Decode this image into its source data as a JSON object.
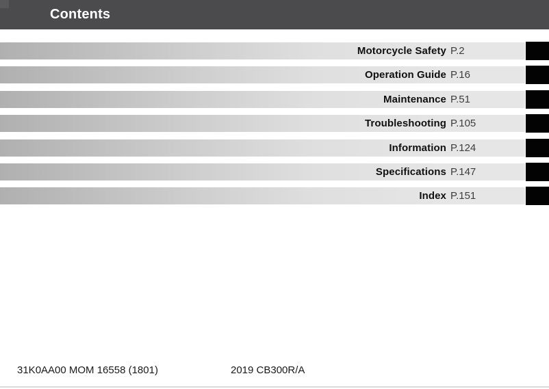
{
  "header": {
    "title": "Contents"
  },
  "toc": {
    "items": [
      {
        "label": "Motorcycle Safety",
        "page": "P.2"
      },
      {
        "label": "Operation Guide",
        "page": "P.16"
      },
      {
        "label": "Maintenance",
        "page": "P.51"
      },
      {
        "label": "Troubleshooting",
        "page": "P.105"
      },
      {
        "label": "Information",
        "page": "P.124"
      },
      {
        "label": "Specifications",
        "page": "P.147"
      },
      {
        "label": "Index",
        "page": "P.151"
      }
    ]
  },
  "footer": {
    "left": "31K0AA00 MOM 16558 (1801)",
    "right": "2019 CB300R/A"
  },
  "colors": {
    "header_bg": "#4b4b4d",
    "bar_gradient_start": "#b0b0b0",
    "bar_gradient_end": "#e6e6e6",
    "tab": "#030303"
  }
}
